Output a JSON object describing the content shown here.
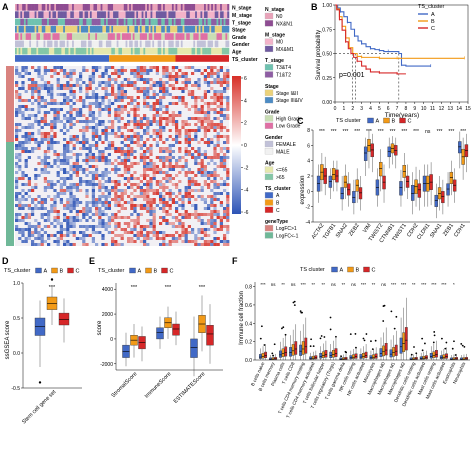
{
  "panels": {
    "A": {
      "letter": "A",
      "track_labels": [
        "N_stage",
        "M_stage",
        "T_stage",
        "Stage",
        "Grade",
        "Gender",
        "Age",
        "TS_cluster"
      ],
      "colorbar_ticks": [
        "6",
        "4",
        "2",
        "0",
        "-2",
        "-4",
        "-6"
      ],
      "legend_groups": [
        {
          "title": "N_stage",
          "items": [
            {
              "label": "N0",
              "color": "#e9a3b9"
            },
            {
              "label": "NX&N1",
              "color": "#8e4c92"
            }
          ]
        },
        {
          "title": "M_stage",
          "items": [
            {
              "label": "M0",
              "color": "#f3b3c9"
            },
            {
              "label": "MX&M1",
              "color": "#6f5aa0"
            }
          ]
        },
        {
          "title": "T_stage",
          "items": [
            {
              "label": "T3&T4",
              "color": "#6fc2b0"
            },
            {
              "label": "T1&T2",
              "color": "#8e5da3"
            }
          ]
        },
        {
          "title": "Stage",
          "items": [
            {
              "label": "Stage I&II",
              "color": "#ebd27a"
            },
            {
              "label": "Stage III&IV",
              "color": "#4c8bc4"
            }
          ]
        },
        {
          "title": "Grade",
          "items": [
            {
              "label": "High Grade",
              "color": "#c9ddb4"
            },
            {
              "label": "Low Grade",
              "color": "#df6fa4"
            }
          ]
        },
        {
          "title": "Gender",
          "items": [
            {
              "label": "FEMALE",
              "color": "#c1c1d8"
            },
            {
              "label": "MALE",
              "color": "#f1f1f1"
            }
          ]
        },
        {
          "title": "Age",
          "items": [
            {
              "label": "<=65",
              "color": "#e6e8ad"
            },
            {
              "label": ">65",
              "color": "#84c7a7"
            }
          ]
        },
        {
          "title": "TS_cluster",
          "items": [
            {
              "label": "A",
              "color": "#4169c6"
            },
            {
              "label": "B",
              "color": "#f29a17"
            },
            {
              "label": "C",
              "color": "#d62728"
            }
          ]
        },
        {
          "title": "geneType",
          "items": [
            {
              "label": "LogFC>1",
              "color": "#d9837f"
            },
            {
              "label": "LogFC<-1",
              "color": "#6fb898"
            }
          ]
        }
      ]
    },
    "B": {
      "letter": "B",
      "ylabel": "Survival probability",
      "xlabel": "Time(years)",
      "pvalue": "p=0.001",
      "legend_title": "TS_cluster",
      "legend_items": [
        "A",
        "B",
        "C"
      ],
      "xticks": [
        "0",
        "1",
        "2",
        "3",
        "4",
        "5",
        "6",
        "7",
        "8",
        "9",
        "10",
        "11",
        "12",
        "13",
        "14",
        "15"
      ],
      "yticks": [
        "0.00",
        "0.25",
        "0.50",
        "0.75",
        "1.00"
      ]
    },
    "C": {
      "letter": "C",
      "ylabel": "expression",
      "legend_title": "TS cluster",
      "legend_items": [
        "A",
        "B",
        "C"
      ],
      "yticks": [
        "-4",
        "-2",
        "0",
        "2",
        "4",
        "6",
        "8"
      ],
      "genes": [
        "ACTA2",
        "TGFB1",
        "SNAI2",
        "ZEB2",
        "VIM",
        "TWIST2",
        "CTNNB1",
        "TWIST1",
        "CDH2",
        "CLDN1",
        "SNAI1",
        "ZEB1",
        "CDH1"
      ],
      "sig": [
        "***",
        "***",
        "***",
        "***",
        "***",
        "***",
        "***",
        "***",
        "***",
        "ns",
        "***",
        "***",
        "***"
      ]
    },
    "D": {
      "letter": "D",
      "ylabel": "ssGSEA score",
      "xcat": "Stem cell gene set",
      "legend_title": "TS_cluster",
      "legend_items": [
        "A",
        "B",
        "C"
      ],
      "yticks": [
        "-0.5",
        "0.0",
        "0.5",
        "1.0"
      ],
      "sig": "***"
    },
    "E": {
      "letter": "E",
      "ylabel": "score",
      "legend_title": "TS_cluster",
      "legend_items": [
        "A",
        "B",
        "C"
      ],
      "yticks": [
        "-2000",
        "0",
        "2000",
        "4000"
      ],
      "categories": [
        "StromalScore",
        "ImmuneScore",
        "ESTIMATEScore"
      ],
      "sig": [
        "***",
        "***",
        "***"
      ]
    },
    "F": {
      "letter": "F",
      "ylabel": "Immune cell fraction",
      "legend_title": "TS cluster",
      "legend_items": [
        "A",
        "B",
        "C"
      ],
      "yticks": [
        "0.0",
        "0.2",
        "0.4",
        "0.6",
        "0.8"
      ],
      "cells": [
        "B cells naive",
        "B cells memory",
        "Plasma cells",
        "T cells CD8",
        "T cells CD4 memory resting",
        "T cells CD4 memory activated",
        "T cells follicular helper",
        "T cells regulatory (Tregs)",
        "T cells gamma delta",
        "NK cells resting",
        "NK cells activated",
        "Monocytes",
        "Macrophages M0",
        "Macrophages M1",
        "Macrophages M2",
        "Dendritic cells resting",
        "Dendritic cells activated",
        "Mast cells resting",
        "Mast cells activated",
        "Eosinophils",
        "Neutrophils"
      ],
      "sig": [
        "***",
        "ns",
        "**",
        "ns",
        "***",
        "**",
        "**",
        "ns",
        "**",
        "ns",
        "***",
        "**",
        "ns",
        "***",
        "***",
        "**",
        "***",
        "***",
        "***",
        "*",
        ""
      ]
    }
  },
  "chart_data": [
    {
      "type": "heatmap",
      "panel": "A",
      "annotation_tracks": [
        "N_stage",
        "M_stage",
        "T_stage",
        "Stage",
        "Grade",
        "Gender",
        "Age",
        "TS_cluster"
      ],
      "color_scale": {
        "min": -6,
        "max": 6,
        "low_color": "#2c53b6",
        "mid_color": "#ffffff",
        "high_color": "#d73027"
      },
      "gene_groups": [
        "LogFC>1",
        "LogFC<-1"
      ],
      "clusters": [
        "A",
        "B",
        "C"
      ]
    },
    {
      "type": "line",
      "panel": "B",
      "title": "",
      "xlabel": "Time(years)",
      "ylabel": "Survival probability",
      "xlim": [
        0,
        15
      ],
      "ylim": [
        0,
        1
      ],
      "annotation": "p=0.001",
      "series": [
        {
          "name": "A",
          "color": "#4169c6"
        },
        {
          "name": "B",
          "color": "#f29a17"
        },
        {
          "name": "C",
          "color": "#d62728"
        }
      ]
    },
    {
      "type": "box",
      "panel": "C",
      "ylabel": "expression",
      "ylim": [
        -4,
        8
      ],
      "categories": [
        "ACTA2",
        "TGFB1",
        "SNAI2",
        "ZEB2",
        "VIM",
        "TWIST2",
        "CTNNB1",
        "TWIST1",
        "CDH2",
        "CLDN1",
        "SNAI1",
        "ZEB1",
        "CDH1"
      ],
      "series": [
        {
          "name": "A",
          "color": "#4169c6"
        },
        {
          "name": "B",
          "color": "#f29a17"
        },
        {
          "name": "C",
          "color": "#d62728"
        }
      ]
    },
    {
      "type": "box",
      "panel": "D",
      "ylabel": "ssGSEA score",
      "ylim": [
        -0.5,
        1.0
      ],
      "categories": [
        "Stem cell gene set"
      ],
      "series": [
        {
          "name": "A",
          "color": "#4169c6"
        },
        {
          "name": "B",
          "color": "#f29a17"
        },
        {
          "name": "C",
          "color": "#d62728"
        }
      ]
    },
    {
      "type": "box",
      "panel": "E",
      "ylabel": "score",
      "ylim": [
        -2000,
        4000
      ],
      "categories": [
        "StromalScore",
        "ImmuneScore",
        "ESTIMATEScore"
      ],
      "series": [
        {
          "name": "A",
          "color": "#4169c6"
        },
        {
          "name": "B",
          "color": "#f29a17"
        },
        {
          "name": "C",
          "color": "#d62728"
        }
      ]
    },
    {
      "type": "box",
      "panel": "F",
      "ylabel": "Immune cell fraction",
      "ylim": [
        0,
        0.8
      ],
      "categories": [
        "B cells naive",
        "B cells memory",
        "Plasma cells",
        "T cells CD8",
        "T cells CD4 memory resting",
        "T cells CD4 memory activated",
        "T cells follicular helper",
        "T cells regulatory (Tregs)",
        "T cells gamma delta",
        "NK cells resting",
        "NK cells activated",
        "Monocytes",
        "Macrophages M0",
        "Macrophages M1",
        "Macrophages M2",
        "Dendritic cells resting",
        "Dendritic cells activated",
        "Mast cells resting",
        "Mast cells activated",
        "Eosinophils",
        "Neutrophils"
      ],
      "series": [
        {
          "name": "A",
          "color": "#4169c6"
        },
        {
          "name": "B",
          "color": "#f29a17"
        },
        {
          "name": "C",
          "color": "#d62728"
        }
      ]
    }
  ]
}
